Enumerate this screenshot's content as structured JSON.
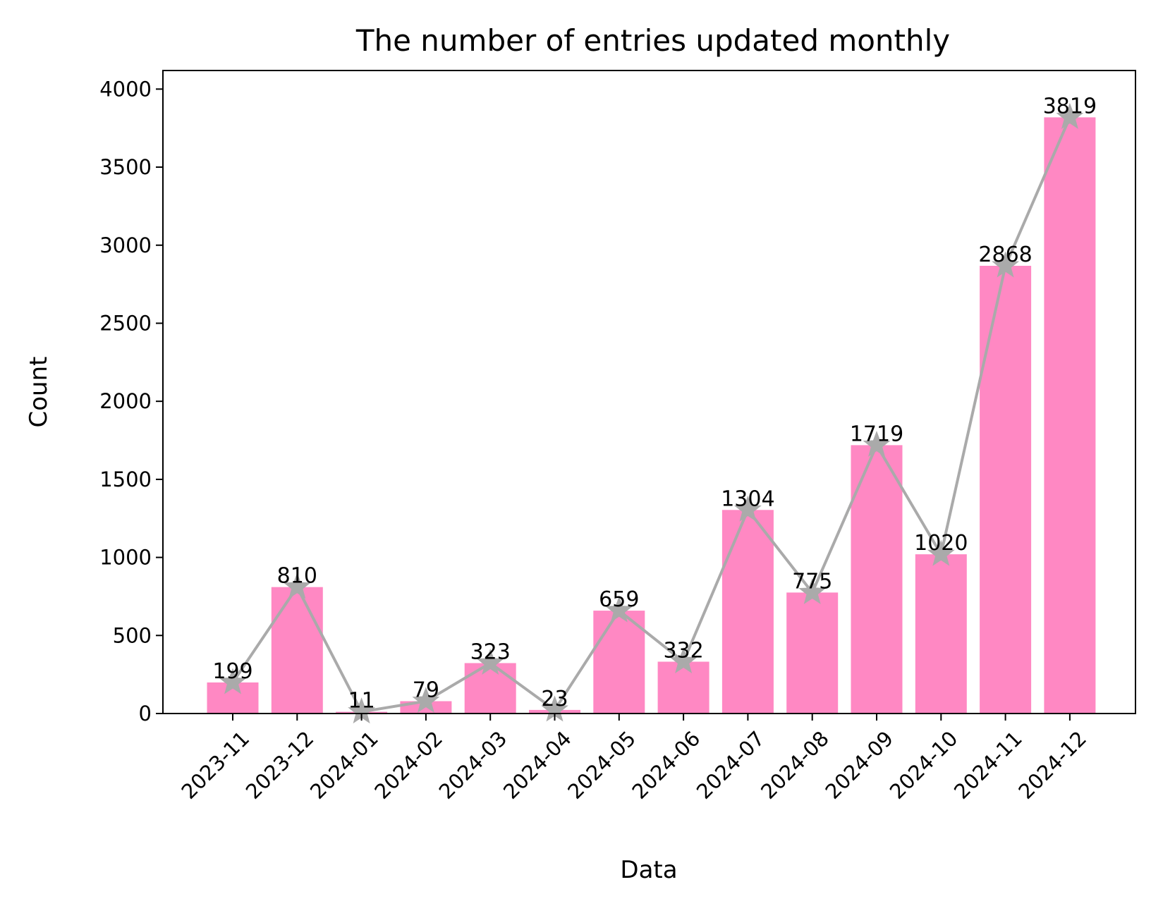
{
  "chart_data": {
    "type": "bar",
    "title": "The number of entries updated monthly",
    "xlabel": "Data",
    "ylabel": "Count",
    "categories": [
      "2023-11",
      "2023-12",
      "2024-01",
      "2024-02",
      "2024-03",
      "2024-04",
      "2024-05",
      "2024-06",
      "2024-07",
      "2024-08",
      "2024-09",
      "2024-10",
      "2024-11",
      "2024-12"
    ],
    "values": [
      199,
      810,
      11,
      79,
      323,
      23,
      659,
      332,
      1304,
      775,
      1719,
      1020,
      2868,
      3819
    ],
    "overlay": {
      "type": "line",
      "marker": "star",
      "values": [
        199,
        810,
        11,
        79,
        323,
        23,
        659,
        332,
        1304,
        775,
        1719,
        1020,
        2868,
        3819
      ]
    },
    "yticks": [
      0,
      500,
      1000,
      1500,
      2000,
      2500,
      3000,
      3500,
      4000
    ],
    "ylim": [
      0,
      4119
    ],
    "grid": false,
    "colors": {
      "bar": "#ff88c3",
      "line": "#aaaaaa",
      "axis": "#000000"
    }
  }
}
